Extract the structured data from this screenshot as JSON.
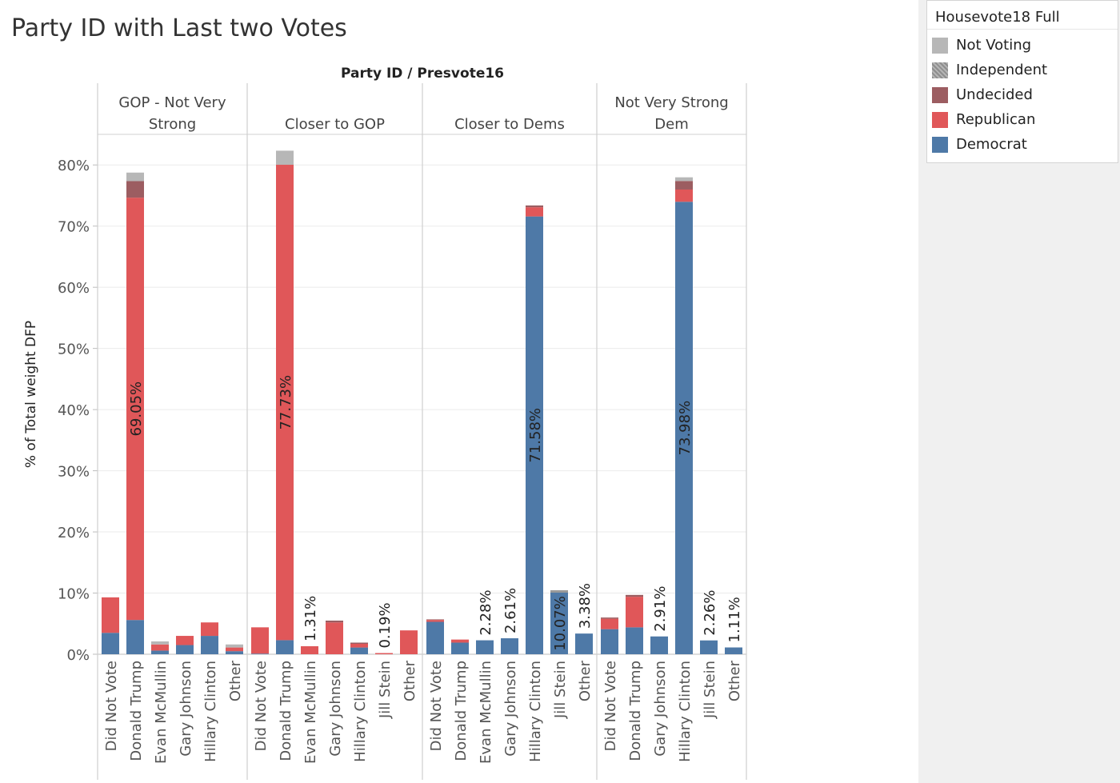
{
  "title": "Party ID with Last two Votes",
  "chart_data": {
    "type": "bar",
    "stacked": true,
    "header": "Party ID  /  Presvote16",
    "ylabel": "% of Total weight DFP",
    "ylim": [
      0,
      85
    ],
    "yticks": [
      0,
      10,
      20,
      30,
      40,
      50,
      60,
      70,
      80
    ],
    "ytick_labels": [
      "0%",
      "10%",
      "20%",
      "30%",
      "40%",
      "50%",
      "60%",
      "70%",
      "80%"
    ],
    "grid": true,
    "legend": {
      "title": "Housevote18 Full",
      "placement": "top-right",
      "items": [
        {
          "name": "Not Voting",
          "color": "#b7b7b7"
        },
        {
          "name": "Independent",
          "color": "#9a9a9a"
        },
        {
          "name": "Undecided",
          "color": "#9c5d61"
        },
        {
          "name": "Republican",
          "color": "#e05759"
        },
        {
          "name": "Democrat",
          "color": "#4e79a7"
        }
      ]
    },
    "stack_order": [
      "Democrat",
      "Republican",
      "Undecided",
      "Independent",
      "Not Voting"
    ],
    "panels": [
      {
        "label_lines": [
          "GOP - Not Very",
          "Strong"
        ],
        "bars": [
          {
            "category": "Did Not Vote",
            "Democrat": 3.5,
            "Republican": 5.8
          },
          {
            "category": "Donald Trump",
            "Democrat": 5.6,
            "Republican": 69.05,
            "Undecided": 2.7,
            "Not Voting": 1.4,
            "label": "69.05%"
          },
          {
            "category": "Evan McMullin",
            "Democrat": 0.6,
            "Republican": 1.0,
            "Not Voting": 0.5
          },
          {
            "category": "Gary Johnson",
            "Democrat": 1.5,
            "Republican": 1.5
          },
          {
            "category": "Hillary Clinton",
            "Democrat": 3.0,
            "Republican": 2.2
          },
          {
            "category": "Other",
            "Democrat": 0.5,
            "Republican": 0.6,
            "Not Voting": 0.5
          }
        ]
      },
      {
        "label_lines": [
          "Closer to GOP"
        ],
        "bars": [
          {
            "category": "Did Not Vote",
            "Democrat": 0.1,
            "Republican": 4.3
          },
          {
            "category": "Donald Trump",
            "Democrat": 2.3,
            "Republican": 77.73,
            "Not Voting": 2.3,
            "label": "77.73%"
          },
          {
            "category": "Evan McMullin",
            "Republican": 1.31,
            "label": "1.31%"
          },
          {
            "category": "Gary Johnson",
            "Republican": 5.2,
            "Undecided": 0.3
          },
          {
            "category": "Hillary Clinton",
            "Democrat": 1.1,
            "Republican": 0.6,
            "Undecided": 0.2
          },
          {
            "category": "Jill Stein",
            "Republican": 0.19,
            "label": "0.19%"
          },
          {
            "category": "Other",
            "Republican": 3.9
          }
        ]
      },
      {
        "label_lines": [
          "Closer to Dems"
        ],
        "bars": [
          {
            "category": "Did Not Vote",
            "Democrat": 5.3,
            "Republican": 0.3,
            "Undecided": 0.1
          },
          {
            "category": "Donald Trump",
            "Democrat": 1.9,
            "Republican": 0.5
          },
          {
            "category": "Evan McMullin",
            "Democrat": 2.28,
            "label": "2.28%"
          },
          {
            "category": "Gary Johnson",
            "Democrat": 2.61,
            "label": "2.61%"
          },
          {
            "category": "Hillary Clinton",
            "Democrat": 71.58,
            "Republican": 1.5,
            "Undecided": 0.3,
            "label": "71.58%"
          },
          {
            "category": "Jill Stein",
            "Democrat": 10.07,
            "Independent": 0.4,
            "label": "10.07%"
          },
          {
            "category": "Other",
            "Democrat": 3.38,
            "label": "3.38%"
          }
        ]
      },
      {
        "label_lines": [
          "Not Very Strong",
          "Dem"
        ],
        "bars": [
          {
            "category": "Did Not Vote",
            "Democrat": 4.1,
            "Republican": 1.7,
            "Undecided": 0.2
          },
          {
            "category": "Donald Trump",
            "Democrat": 4.4,
            "Republican": 5.0,
            "Undecided": 0.3
          },
          {
            "category": "Gary Johnson",
            "Democrat": 2.91,
            "label": "2.91%"
          },
          {
            "category": "Hillary Clinton",
            "Democrat": 73.98,
            "Republican": 2.0,
            "Undecided": 1.4,
            "Not Voting": 0.6,
            "label": "73.98%"
          },
          {
            "category": "Jill Stein",
            "Democrat": 2.26,
            "label": "2.26%"
          },
          {
            "category": "Other",
            "Democrat": 1.11,
            "label": "1.11%"
          }
        ]
      }
    ]
  }
}
